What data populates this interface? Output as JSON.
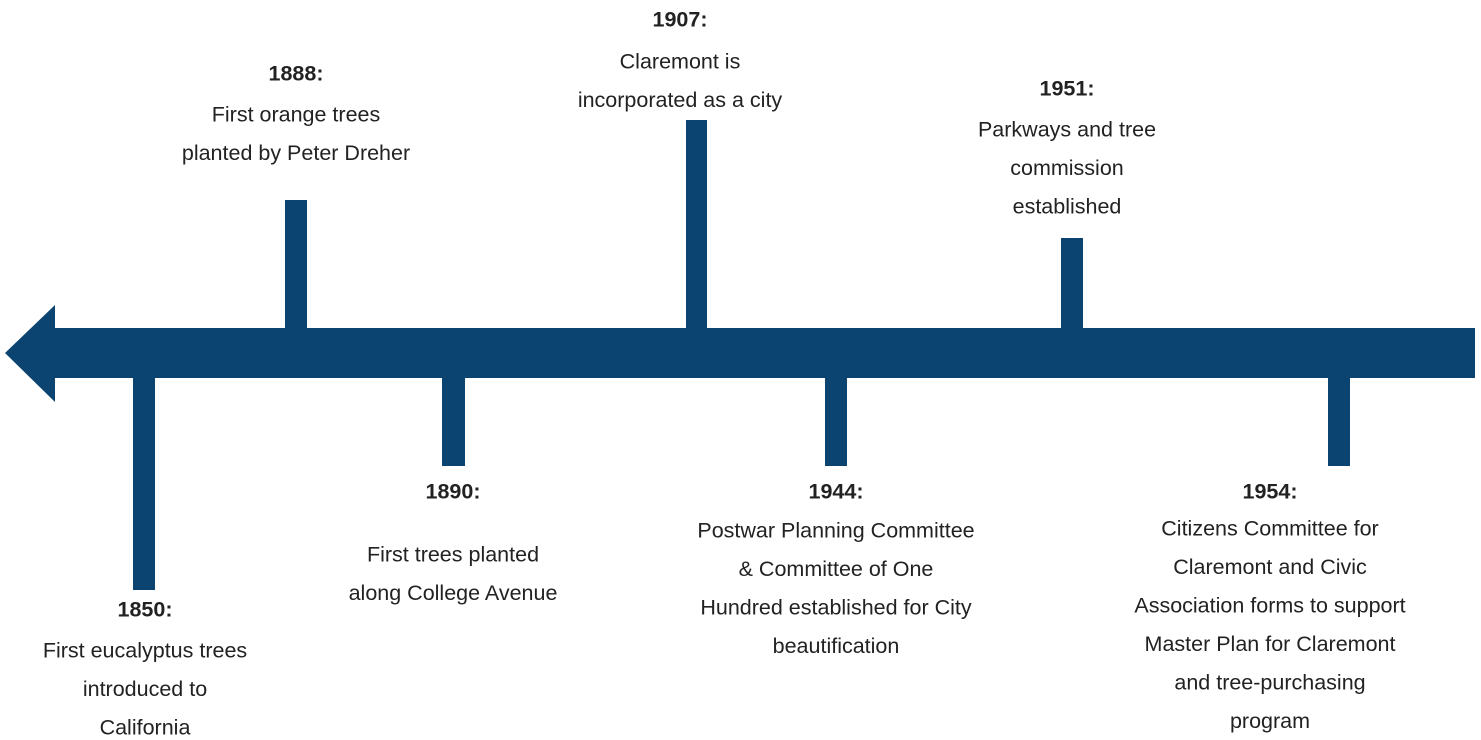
{
  "events": [
    {
      "year": "1850:",
      "lines": [
        "First eucalyptus trees",
        "introduced to",
        "California"
      ]
    },
    {
      "year": "1888:",
      "lines": [
        "First orange trees",
        "planted by Peter Dreher"
      ]
    },
    {
      "year": "1890:",
      "lines": [
        "First trees planted",
        "along College Avenue"
      ]
    },
    {
      "year": "1907:",
      "lines": [
        "Claremont is",
        "incorporated as a city"
      ]
    },
    {
      "year": "1944:",
      "lines": [
        "Postwar Planning Committee",
        "& Committee of One",
        "Hundred established for City",
        "beautification"
      ]
    },
    {
      "year": "1951:",
      "lines": [
        "Parkways and tree",
        "commission",
        "established"
      ]
    },
    {
      "year": "1954:",
      "lines": [
        "Citizens Committee for",
        "Claremont and Civic",
        "Association forms to support",
        "Master Plan for Claremont",
        "and tree-purchasing",
        "program"
      ]
    }
  ]
}
